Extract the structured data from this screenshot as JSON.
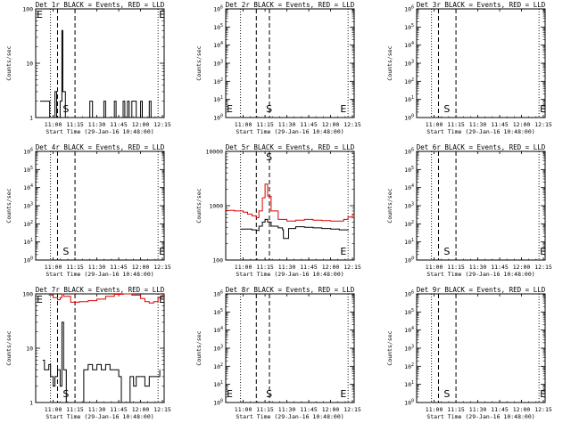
{
  "xaxis": {
    "ticks": [
      "11:00",
      "11:15",
      "11:30",
      "11:45",
      "12:00",
      "12:15"
    ],
    "label": "Start Time (29-Jan-16 10:48:00)"
  },
  "ylabel": "Counts/sec",
  "chart_data": [
    {
      "type": "line",
      "title": "Det 1r BLACK = Events, RED = LLD",
      "yscale": "log",
      "ylim": [
        1,
        100
      ],
      "yticks": [
        "1",
        "10",
        "100"
      ],
      "markers": [
        {
          "text": "E",
          "x": 10.8
        },
        {
          "text": "S",
          "x": 11.1
        },
        {
          "text": "E",
          "x": 12.2
        }
      ],
      "vlines_dotted": [
        10.97,
        12.2
      ],
      "vlines_dashed": [
        11.05,
        11.25
      ],
      "series": [
        {
          "name": "BLACK",
          "color": "#000000",
          "values": [
            [
              10.85,
              2
            ],
            [
              10.95,
              2
            ],
            [
              10.96,
              1
            ],
            [
              11.0,
              1
            ],
            [
              11.02,
              3
            ],
            [
              11.04,
              1
            ],
            [
              11.05,
              1
            ],
            [
              11.08,
              2
            ],
            [
              11.1,
              40
            ],
            [
              11.11,
              3
            ],
            [
              11.14,
              1
            ],
            [
              11.4,
              1
            ],
            [
              11.42,
              2
            ],
            [
              11.45,
              1
            ],
            [
              11.55,
              1
            ],
            [
              11.58,
              2
            ],
            [
              11.6,
              1
            ],
            [
              11.7,
              2
            ],
            [
              11.72,
              1
            ],
            [
              11.8,
              2
            ],
            [
              11.82,
              1
            ],
            [
              11.85,
              2
            ],
            [
              11.87,
              1
            ],
            [
              11.9,
              2
            ],
            [
              11.95,
              1
            ],
            [
              12.0,
              2
            ],
            [
              12.02,
              1
            ],
            [
              12.1,
              2
            ],
            [
              12.12,
              1
            ],
            [
              12.18,
              1
            ]
          ]
        }
      ]
    },
    {
      "type": "line",
      "title": "Det 2r BLACK = Events, RED = LLD",
      "yscale": "log",
      "ylim": [
        1,
        1000000
      ],
      "yticks": [
        "10^0",
        "10^1",
        "10^2",
        "10^3",
        "10^4",
        "10^5",
        "10^6"
      ],
      "markers": [
        {
          "text": "E",
          "x": 10.8
        },
        {
          "text": "S",
          "x": 11.25
        },
        {
          "text": "E",
          "x": 12.1
        }
      ],
      "vlines_dotted": [
        10.97,
        12.2
      ],
      "vlines_dashed": [
        11.15,
        11.3
      ],
      "series": []
    },
    {
      "type": "line",
      "title": "Det 3r BLACK = Events, RED = LLD",
      "yscale": "log",
      "ylim": [
        1,
        1000000
      ],
      "yticks": [
        "10^0",
        "10^1",
        "10^2",
        "10^3",
        "10^4",
        "10^5",
        "10^6"
      ],
      "markers": [
        {
          "text": "S",
          "x": 11.1
        },
        {
          "text": "E",
          "x": 12.2
        }
      ],
      "vlines_dotted": [
        10.97,
        12.2
      ],
      "vlines_dashed": [
        11.05,
        11.25
      ],
      "series": []
    },
    {
      "type": "line",
      "title": "Det 4r BLACK = Events, RED = LLD",
      "yscale": "log",
      "ylim": [
        1,
        1000000
      ],
      "yticks": [
        "10^0",
        "10^1",
        "10^2",
        "10^3",
        "10^4",
        "10^5",
        "10^6"
      ],
      "markers": [
        {
          "text": "S",
          "x": 11.1
        },
        {
          "text": "E",
          "x": 12.2
        }
      ],
      "vlines_dotted": [
        10.97,
        12.2
      ],
      "vlines_dashed": [
        11.05,
        11.25
      ],
      "series": []
    },
    {
      "type": "line",
      "title": "Det 5r BLACK = Events, RED = LLD",
      "yscale": "log",
      "ylim": [
        100,
        10000
      ],
      "yticks": [
        "100",
        "1000",
        "10000"
      ],
      "markers": [
        {
          "text": "S",
          "x": 11.25
        },
        {
          "text": "E",
          "x": 12.1
        }
      ],
      "vlines_dotted": [
        10.97,
        12.2
      ],
      "vlines_dashed": [
        11.15,
        11.3
      ],
      "series": [
        {
          "name": "RED",
          "color": "#dd0000",
          "values": [
            [
              10.8,
              820
            ],
            [
              10.9,
              800
            ],
            [
              11.0,
              760
            ],
            [
              11.05,
              700
            ],
            [
              11.1,
              650
            ],
            [
              11.15,
              600
            ],
            [
              11.18,
              800
            ],
            [
              11.22,
              1400
            ],
            [
              11.25,
              2500
            ],
            [
              11.28,
              1500
            ],
            [
              11.32,
              800
            ],
            [
              11.4,
              560
            ],
            [
              11.5,
              520
            ],
            [
              11.6,
              540
            ],
            [
              11.7,
              560
            ],
            [
              11.8,
              540
            ],
            [
              11.9,
              530
            ],
            [
              12.0,
              520
            ],
            [
              12.1,
              520
            ],
            [
              12.15,
              560
            ],
            [
              12.2,
              620
            ],
            [
              12.25,
              720
            ]
          ]
        },
        {
          "name": "BLACK",
          "color": "#000000",
          "values": [
            [
              10.97,
              370
            ],
            [
              11.0,
              370
            ],
            [
              11.1,
              360
            ],
            [
              11.15,
              350
            ],
            [
              11.18,
              420
            ],
            [
              11.22,
              500
            ],
            [
              11.25,
              560
            ],
            [
              11.28,
              500
            ],
            [
              11.32,
              420
            ],
            [
              11.4,
              390
            ],
            [
              11.45,
              360
            ],
            [
              11.46,
              250
            ],
            [
              11.5,
              250
            ],
            [
              11.52,
              380
            ],
            [
              11.6,
              410
            ],
            [
              11.7,
              400
            ],
            [
              11.8,
              390
            ],
            [
              11.9,
              380
            ],
            [
              12.0,
              370
            ],
            [
              12.1,
              360
            ],
            [
              12.2,
              365
            ]
          ]
        }
      ]
    },
    {
      "type": "line",
      "title": "Det 6r BLACK = Events, RED = LLD",
      "yscale": "log",
      "ylim": [
        1,
        1000000
      ],
      "yticks": [
        "10^0",
        "10^1",
        "10^2",
        "10^3",
        "10^4",
        "10^5",
        "10^6"
      ],
      "markers": [
        {
          "text": "S",
          "x": 11.1
        },
        {
          "text": "E",
          "x": 12.2
        }
      ],
      "vlines_dotted": [
        10.97,
        12.2
      ],
      "vlines_dashed": [
        11.05,
        11.25
      ],
      "series": []
    },
    {
      "type": "line",
      "title": "Det 7r BLACK = Events, RED = LLD",
      "yscale": "log",
      "ylim": [
        1,
        100
      ],
      "yticks": [
        "1",
        "10",
        "100"
      ],
      "markers": [
        {
          "text": "E",
          "x": 10.8
        },
        {
          "text": "S",
          "x": 11.1
        },
        {
          "text": "E",
          "x": 12.2
        }
      ],
      "vlines_dotted": [
        10.97,
        12.2
      ],
      "vlines_dashed": [
        11.05,
        11.25
      ],
      "series": [
        {
          "name": "RED",
          "color": "#dd0000",
          "values": [
            [
              10.95,
              95
            ],
            [
              11.0,
              85
            ],
            [
              11.05,
              78
            ],
            [
              11.08,
              85
            ],
            [
              11.1,
              100
            ],
            [
              11.12,
              90
            ],
            [
              11.2,
              70
            ],
            [
              11.3,
              72
            ],
            [
              11.4,
              75
            ],
            [
              11.5,
              80
            ],
            [
              11.6,
              90
            ],
            [
              11.7,
              98
            ],
            [
              11.8,
              100
            ],
            [
              11.9,
              95
            ],
            [
              12.0,
              82
            ],
            [
              12.05,
              72
            ],
            [
              12.1,
              68
            ],
            [
              12.15,
              72
            ],
            [
              12.2,
              85
            ],
            [
              12.25,
              100
            ]
          ]
        },
        {
          "name": "BLACK",
          "color": "#000000",
          "values": [
            [
              10.88,
              6
            ],
            [
              10.9,
              4
            ],
            [
              10.93,
              4
            ],
            [
              10.95,
              5
            ],
            [
              10.97,
              3
            ],
            [
              11.0,
              2
            ],
            [
              11.02,
              3
            ],
            [
              11.05,
              4
            ],
            [
              11.08,
              2
            ],
            [
              11.1,
              30
            ],
            [
              11.12,
              4
            ],
            [
              11.15,
              1
            ],
            [
              11.3,
              1
            ],
            [
              11.35,
              4
            ],
            [
              11.4,
              5
            ],
            [
              11.45,
              4
            ],
            [
              11.5,
              5
            ],
            [
              11.55,
              4
            ],
            [
              11.6,
              5
            ],
            [
              11.65,
              4
            ],
            [
              11.7,
              4
            ],
            [
              11.75,
              3
            ],
            [
              11.78,
              1
            ],
            [
              11.85,
              1
            ],
            [
              11.88,
              3
            ],
            [
              11.92,
              2
            ],
            [
              11.95,
              3
            ],
            [
              12.0,
              3
            ],
            [
              12.05,
              2
            ],
            [
              12.1,
              3
            ],
            [
              12.2,
              3
            ],
            [
              12.22,
              4
            ]
          ]
        }
      ]
    },
    {
      "type": "line",
      "title": "Det 8r BLACK = Events, RED = LLD",
      "yscale": "log",
      "ylim": [
        1,
        1000000
      ],
      "yticks": [
        "10^0",
        "10^1",
        "10^2",
        "10^3",
        "10^4",
        "10^5",
        "10^6"
      ],
      "markers": [
        {
          "text": "E",
          "x": 10.8
        },
        {
          "text": "S",
          "x": 11.25
        },
        {
          "text": "E",
          "x": 12.1
        }
      ],
      "vlines_dotted": [
        10.97,
        12.2
      ],
      "vlines_dashed": [
        11.15,
        11.3
      ],
      "series": []
    },
    {
      "type": "line",
      "title": "Det 9r BLACK = Events, RED = LLD",
      "yscale": "log",
      "ylim": [
        1,
        1000000
      ],
      "yticks": [
        "10^0",
        "10^1",
        "10^2",
        "10^3",
        "10^4",
        "10^5",
        "10^6"
      ],
      "markers": [
        {
          "text": "S",
          "x": 11.1
        },
        {
          "text": "E",
          "x": 12.2
        }
      ],
      "vlines_dotted": [
        10.97,
        12.2
      ],
      "vlines_dashed": [
        11.05,
        11.25
      ],
      "series": []
    }
  ]
}
